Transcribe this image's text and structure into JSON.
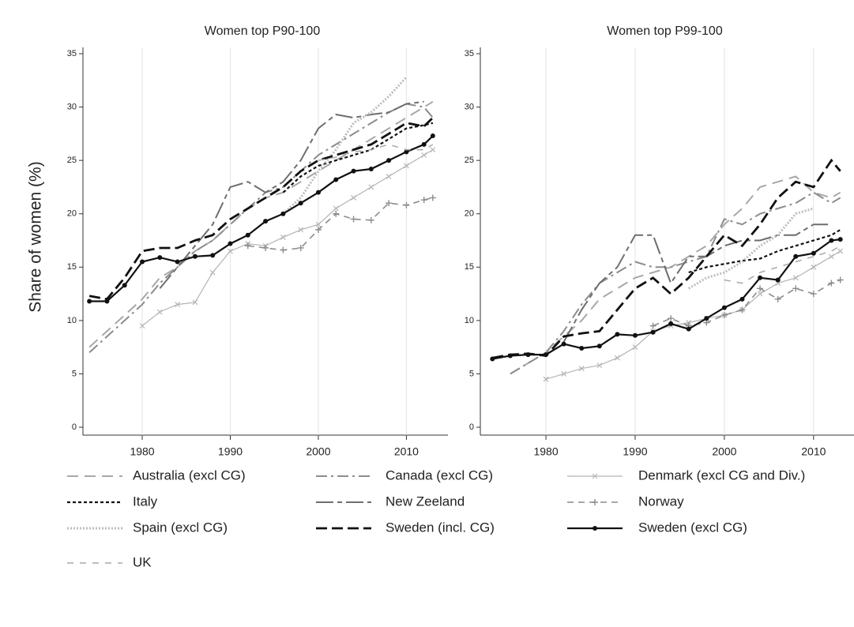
{
  "chart_data": [
    {
      "type": "line",
      "title": "Women top P90-100",
      "ylabel": "Share of women (%)",
      "x": [
        1974,
        1976,
        1978,
        1980,
        1982,
        1984,
        1986,
        1988,
        1990,
        1992,
        1994,
        1996,
        1998,
        2000,
        2002,
        2004,
        2006,
        2008,
        2010,
        2012,
        2013
      ],
      "xlim": [
        1973,
        2014
      ],
      "xticks": [
        1980,
        1990,
        2000,
        2010
      ],
      "ylim": [
        0,
        35
      ],
      "yticks": [
        0,
        5,
        10,
        15,
        20,
        25,
        30,
        35
      ],
      "grid": "x",
      "series": [
        {
          "name": "Australia (excl CG)",
          "color": "#a8a8a8",
          "values": [
            7.5,
            9,
            10.5,
            12,
            14,
            15,
            16.5,
            17.5,
            19,
            20.5,
            21.5,
            22,
            23,
            24,
            25,
            26,
            27,
            28,
            29,
            30,
            30.5
          ]
        },
        {
          "name": "Canada (excl CG)",
          "color": "#8c8c8c",
          "values": [
            7,
            8.5,
            10,
            11.5,
            13.5,
            15,
            16.5,
            17.5,
            19,
            20.5,
            22,
            22.5,
            24,
            25.5,
            26.5,
            27.5,
            28.5,
            29.5,
            30.3,
            30,
            29
          ]
        },
        {
          "name": "Denmark (excl CG and Div.)",
          "color": "#b4b4b4",
          "values": [
            null,
            null,
            null,
            9.5,
            10.8,
            11.5,
            11.7,
            14.5,
            16.5,
            17.2,
            17,
            17.8,
            18.5,
            19,
            20.5,
            21.5,
            22.5,
            23.5,
            24.5,
            25.5,
            26
          ]
        },
        {
          "name": "Italy",
          "color": "#111111",
          "values": [
            null,
            null,
            null,
            null,
            null,
            null,
            null,
            null,
            null,
            null,
            null,
            22,
            23.5,
            24.5,
            25,
            25.5,
            26,
            27,
            28,
            28.3,
            28.5
          ]
        },
        {
          "name": "New Zeeland",
          "color": "#6e6e6e",
          "values": [
            null,
            null,
            null,
            null,
            13,
            15,
            17,
            19,
            22.5,
            23,
            22,
            23,
            25,
            28,
            29.3,
            29,
            29.3,
            29.5,
            30.3,
            30.5,
            null
          ]
        },
        {
          "name": "Norway",
          "color": "#8c8c8c",
          "values": [
            null,
            null,
            null,
            null,
            null,
            null,
            null,
            null,
            null,
            17,
            16.8,
            16.6,
            16.8,
            18.5,
            20,
            19.5,
            19.4,
            21,
            20.8,
            21.3,
            21.5
          ]
        },
        {
          "name": "Spain (excl CG)",
          "color": "#bdbdbd",
          "values": [
            null,
            null,
            null,
            null,
            null,
            null,
            null,
            null,
            null,
            null,
            null,
            20,
            21.5,
            24,
            26,
            28.5,
            29.5,
            31,
            32.8,
            null,
            null
          ]
        },
        {
          "name": "Sweden (incl. CG)",
          "color": "#111111",
          "values": [
            12.3,
            12,
            14,
            16.5,
            16.8,
            16.8,
            17.5,
            18,
            19.5,
            20.5,
            21.5,
            22.5,
            24,
            25,
            25.5,
            26,
            26.5,
            27.5,
            28.5,
            28.2,
            29
          ]
        },
        {
          "name": "Sweden (excl CG)",
          "color": "#111111",
          "values": [
            11.8,
            11.8,
            13.3,
            15.5,
            15.9,
            15.5,
            16,
            16.1,
            17.2,
            18,
            19.3,
            20,
            21,
            22,
            23.2,
            24,
            24.2,
            25,
            25.8,
            26.5,
            27.3
          ]
        },
        {
          "name": "UK",
          "color": "#a8a8a8",
          "values": [
            null,
            null,
            null,
            null,
            null,
            null,
            null,
            null,
            null,
            null,
            null,
            null,
            null,
            25,
            25.3,
            25.8,
            26,
            26.5,
            26,
            26,
            26.5
          ]
        }
      ]
    },
    {
      "type": "line",
      "title": "Women top P99-100",
      "x": [
        1974,
        1976,
        1978,
        1980,
        1982,
        1984,
        1986,
        1988,
        1990,
        1992,
        1994,
        1996,
        1998,
        2000,
        2002,
        2004,
        2006,
        2008,
        2010,
        2012,
        2013
      ],
      "xlim": [
        1973,
        2014
      ],
      "xticks": [
        1980,
        1990,
        2000,
        2010
      ],
      "ylim": [
        0,
        35
      ],
      "yticks": [
        0,
        5,
        10,
        15,
        20,
        25,
        30,
        35
      ],
      "grid": "x",
      "series": [
        {
          "color": "#a8a8a8",
          "values": [
            null,
            5,
            6,
            7,
            8.5,
            10,
            12,
            13,
            14,
            14.5,
            15,
            16,
            17,
            19,
            20.5,
            22.5,
            23,
            23.5,
            22,
            21.5,
            22
          ]
        },
        {
          "color": "#8c8c8c",
          "values": [
            null,
            5,
            6,
            7,
            9,
            11.5,
            13.5,
            14.5,
            15.5,
            15,
            15,
            15.5,
            16,
            19.5,
            19,
            20,
            20.5,
            21,
            22,
            21,
            21.5
          ]
        },
        {
          "color": "#b4b4b4",
          "values": [
            null,
            null,
            null,
            4.5,
            5,
            5.5,
            5.8,
            6.5,
            7.5,
            9,
            9.5,
            9.8,
            10.2,
            10.5,
            11,
            12.5,
            13.5,
            14,
            15,
            16,
            16.5
          ]
        },
        {
          "color": "#111111",
          "values": [
            null,
            null,
            null,
            null,
            null,
            null,
            null,
            null,
            null,
            null,
            null,
            14.5,
            15,
            15.3,
            15.6,
            15.8,
            16.5,
            17,
            17.5,
            18,
            18.5
          ]
        },
        {
          "color": "#6e6e6e",
          "values": [
            null,
            null,
            null,
            null,
            8,
            11,
            13.5,
            15,
            18,
            18,
            13.5,
            16,
            16,
            17,
            17.5,
            17.5,
            18,
            18,
            19,
            19,
            null
          ]
        },
        {
          "color": "#8c8c8c",
          "values": [
            null,
            null,
            null,
            null,
            null,
            null,
            null,
            null,
            null,
            9.5,
            10.2,
            9.5,
            9.8,
            10.5,
            11,
            13,
            12,
            13,
            12.5,
            13.5,
            13.8
          ]
        },
        {
          "color": "#bdbdbd",
          "values": [
            null,
            null,
            null,
            null,
            null,
            null,
            null,
            null,
            null,
            null,
            null,
            13,
            14,
            14.5,
            15.5,
            17,
            18,
            20,
            20.5,
            null,
            null
          ]
        },
        {
          "color": "#111111",
          "values": [
            6.5,
            6.8,
            6.9,
            6.7,
            8.5,
            8.8,
            9,
            11,
            13,
            14,
            12.5,
            14,
            16,
            18,
            17,
            19,
            21.5,
            23,
            22.5,
            25,
            24
          ]
        },
        {
          "color": "#111111",
          "values": [
            6.4,
            6.7,
            6.8,
            6.8,
            7.8,
            7.4,
            7.6,
            8.7,
            8.6,
            8.9,
            9.7,
            9.2,
            10.2,
            11.2,
            12,
            14,
            13.8,
            16,
            16.3,
            17.5,
            17.6
          ]
        },
        {
          "color": "#a8a8a8",
          "values": [
            null,
            null,
            null,
            null,
            null,
            null,
            null,
            null,
            null,
            null,
            null,
            null,
            null,
            13.8,
            13.5,
            14.5,
            15,
            15.5,
            16,
            16.5,
            17
          ]
        }
      ]
    }
  ]
}
